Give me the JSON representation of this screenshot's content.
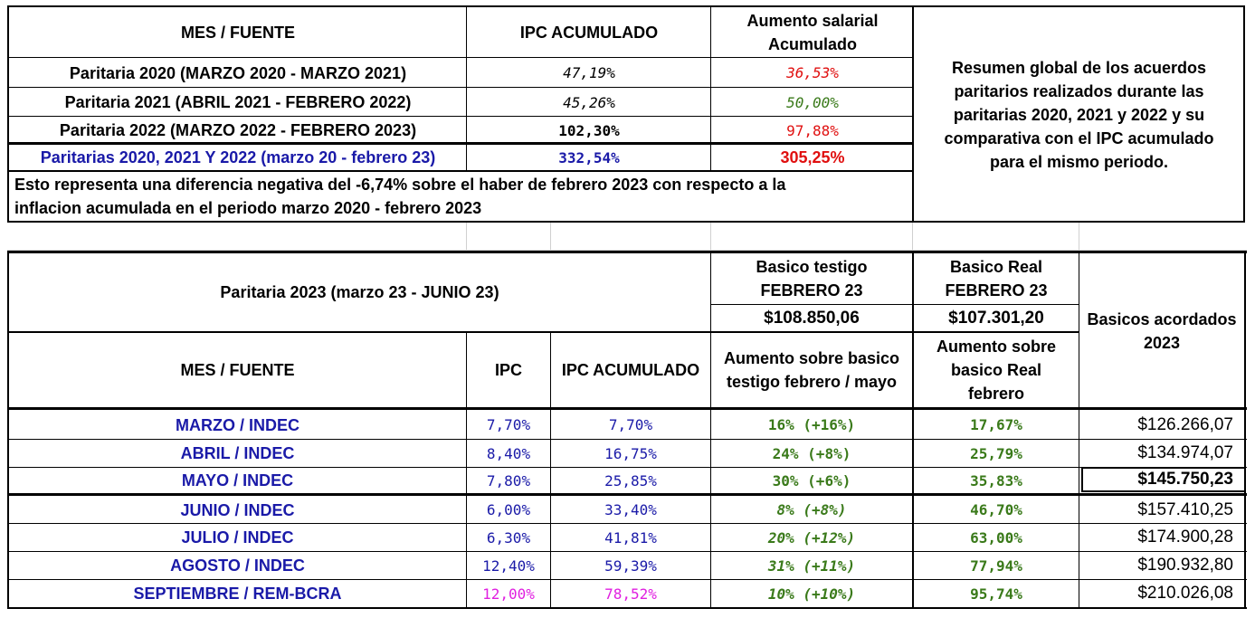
{
  "table1": {
    "headers": {
      "mes_fuente": "MES / FUENTE",
      "ipc_acumulado": "IPC ACUMULADO",
      "aumento_line1": "Aumento salarial",
      "aumento_line2": "Acumulado"
    },
    "rows": [
      {
        "label": "Paritaria 2020 (MARZO 2020 - MARZO 2021)",
        "ipc": "47,19%",
        "aumento": "36,53%"
      },
      {
        "label": "Paritaria 2021 (ABRIL 2021 - FEBRERO 2022)",
        "ipc": "45,26%",
        "aumento": "50,00%"
      },
      {
        "label": "Paritaria 2022 (MARZO 2022 - FEBRERO 2023)",
        "ipc": "102,30%",
        "aumento": "97,88%"
      },
      {
        "label": "Paritarias 2020, 2021 Y 2022 (marzo 20 - febrero 23)",
        "ipc": "332,54%",
        "aumento": "305,25%"
      }
    ],
    "note_line1": "Esto representa una diferencia negativa del -6,74% sobre el haber de febrero 2023 con respecto a la",
    "note_line2": "inflacion acumulada en el periodo marzo 2020 - febrero 2023",
    "summary": [
      "Resumen global de los acuerdos",
      "paritarios realizados durante las",
      "paritarias 2020, 2021 y 2022  y su",
      "comparativa con el IPC acumulado",
      "para el mismo periodo."
    ]
  },
  "table2": {
    "title": "Paritaria 2023 (marzo 23 - JUNIO 23)",
    "basico_testigo_line1": "Basico testigo",
    "basico_testigo_line2": "FEBRERO 23",
    "basico_testigo_value": "$108.850,06",
    "basico_real_line1": "Basico Real",
    "basico_real_line2": "FEBRERO 23",
    "basico_real_value": "$107.301,20",
    "basicos_line1": "Basicos acordados",
    "basicos_line2": "2023",
    "headers": {
      "mes_fuente": "MES / FUENTE",
      "ipc": "IPC",
      "ipc_acumulado": "IPC ACUMULADO",
      "aumento_testigo_line1": "Aumento sobre basico",
      "aumento_testigo_line2": "testigo febrero / mayo",
      "aumento_real_line1": "Aumento sobre",
      "aumento_real_line2": "basico Real",
      "aumento_real_line3": "febrero"
    },
    "rows": [
      {
        "mes": "MARZO / INDEC",
        "ipc": "7,70%",
        "ipc_acum": "7,70%",
        "testigo": "16% (+16%)",
        "real": "17,67%",
        "basico": "$126.266,07"
      },
      {
        "mes": "ABRIL / INDEC",
        "ipc": "8,40%",
        "ipc_acum": "16,75%",
        "testigo": "24% (+8%)",
        "real": "25,79%",
        "basico": "$134.974,07"
      },
      {
        "mes": "MAYO / INDEC",
        "ipc": "7,80%",
        "ipc_acum": "25,85%",
        "testigo": "30% (+6%)",
        "real": "35,83%",
        "basico": "$145.750,23"
      },
      {
        "mes": "JUNIO / INDEC",
        "ipc": "6,00%",
        "ipc_acum": "33,40%",
        "testigo": "8% (+8%)",
        "real": "46,70%",
        "basico": "$157.410,25"
      },
      {
        "mes": "JULIO / INDEC",
        "ipc": "6,30%",
        "ipc_acum": "41,81%",
        "testigo": "20% (+12%)",
        "real": "63,00%",
        "basico": "$174.900,28"
      },
      {
        "mes": "AGOSTO / INDEC",
        "ipc": "12,40%",
        "ipc_acum": "59,39%",
        "testigo": "31% (+11%)",
        "real": "77,94%",
        "basico": "$190.932,80"
      },
      {
        "mes": "SEPTIEMBRE / REM-BCRA",
        "ipc": "12,00%",
        "ipc_acum": "78,52%",
        "testigo": "10% (+10%)",
        "real": "95,74%",
        "basico": "$210.026,08"
      }
    ]
  }
}
